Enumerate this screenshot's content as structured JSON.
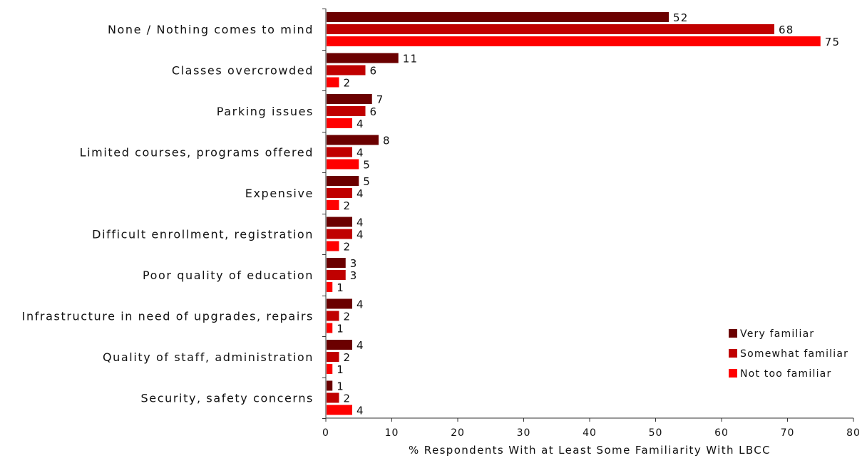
{
  "chart_data": {
    "type": "bar",
    "orientation": "horizontal",
    "title": "",
    "xlabel": "% Respondents With at Least Some Familiarity With LBCC",
    "ylabel": "",
    "xlim": [
      0,
      80
    ],
    "xticks": [
      0,
      10,
      20,
      30,
      40,
      50,
      60,
      70,
      80
    ],
    "grid": false,
    "legend_position": "lower-right",
    "categories": [
      "None / Nothing comes to mind",
      "Classes overcrowded",
      "Parking issues",
      "Limited courses, programs offered",
      "Expensive",
      "Difficult enrollment, registration",
      "Poor quality of education",
      "Infrastructure in need of upgrades, repairs",
      "Quality of staff, administration",
      "Security, safety concerns"
    ],
    "series": [
      {
        "name": "Very familiar",
        "color": "#6b0000",
        "values": [
          52,
          11,
          7,
          8,
          5,
          4,
          3,
          4,
          4,
          1
        ]
      },
      {
        "name": "Somewhat familiar",
        "color": "#c00000",
        "values": [
          68,
          6,
          6,
          4,
          4,
          4,
          3,
          2,
          2,
          2
        ]
      },
      {
        "name": "Not too familiar",
        "color": "#ff0000",
        "values": [
          75,
          2,
          4,
          5,
          2,
          2,
          1,
          1,
          1,
          4
        ]
      }
    ]
  }
}
